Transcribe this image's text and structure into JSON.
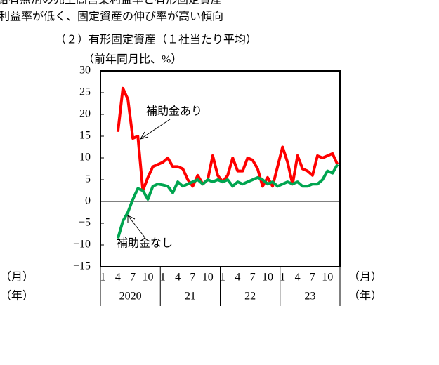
{
  "chart_data": {
    "type": "line",
    "header_lines": [
      "給有無別の売上高営業利益率と有形固定資産",
      "利益率が低く、固定資産の伸び率が高い傾向"
    ],
    "title": "（２）有形固定資産（１社当たり平均）",
    "y_label": "（前年同月比、%）",
    "month_unit": "（月）",
    "year_unit": "（年）",
    "categories": [
      "1",
      null,
      null,
      "4",
      null,
      null,
      "7",
      null,
      null,
      "10",
      null,
      null,
      "1",
      null,
      null,
      "4",
      null,
      null,
      "7",
      null,
      null,
      "10",
      null,
      null,
      "1",
      null,
      null,
      "4",
      null,
      null,
      "7",
      null,
      null,
      "10",
      null,
      null,
      "1",
      null,
      null,
      "4",
      null,
      null,
      "7",
      null,
      null,
      "10",
      null,
      null
    ],
    "years": [
      "2020",
      "21",
      "22",
      "23"
    ],
    "series": [
      {
        "name": "補助金あり",
        "color": "#ff0000",
        "values": [
          null,
          null,
          null,
          16,
          26,
          23.5,
          14.5,
          15,
          2.5,
          5.5,
          8,
          8.5,
          9,
          10,
          8,
          8,
          7.5,
          5,
          3.5,
          6,
          4,
          5,
          10.5,
          6,
          4.5,
          6,
          10,
          7,
          7,
          10,
          9.5,
          7.5,
          3.5,
          5.5,
          3.5,
          8,
          12.5,
          9,
          4,
          10.5,
          7.5,
          7,
          6,
          10.5,
          10,
          10.5,
          11,
          8.5
        ]
      },
      {
        "name": "補助金なし",
        "color": "#00a550",
        "values": [
          null,
          null,
          null,
          -8.5,
          -4.5,
          -2.5,
          0.5,
          3,
          2.5,
          0.5,
          3.5,
          4,
          3.8,
          3.5,
          2,
          4.5,
          3.5,
          4,
          4.5,
          5,
          4,
          5,
          4.5,
          5,
          4.5,
          5,
          3.5,
          4.5,
          4,
          4.5,
          5,
          5.5,
          5,
          4,
          4.5,
          3.5,
          4,
          4.5,
          4,
          4.5,
          3.5,
          3.5,
          4,
          4,
          5,
          7,
          6.5,
          8.5
        ]
      }
    ],
    "ylim": [
      -15,
      30
    ],
    "yticks": [
      {
        "value": -15,
        "label": "−15"
      },
      {
        "value": -10,
        "label": "−10"
      },
      {
        "value": -5,
        "label": "−5"
      },
      0,
      5,
      10,
      15,
      20,
      25,
      30
    ]
  }
}
